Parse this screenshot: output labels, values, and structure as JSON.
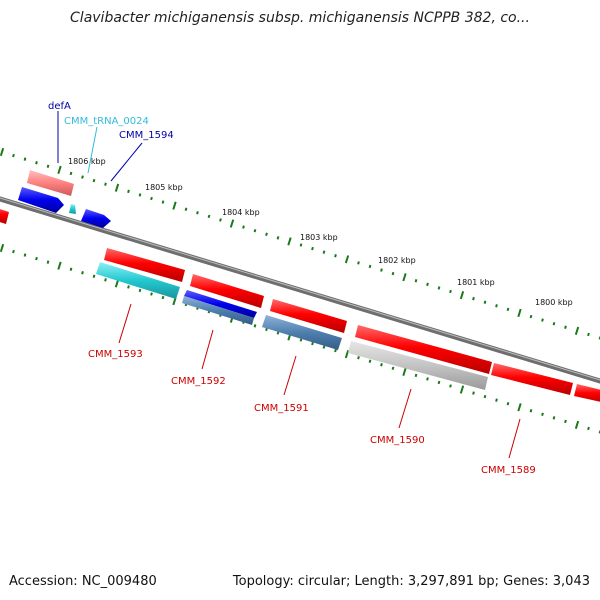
{
  "title": "Clavibacter michiganensis subsp. michiganensis NCPPB 382, co...",
  "footer": {
    "accession": "Accession: NC_009480",
    "summary": "Topology: circular; Length: 3,297,891 bp; Genes: 3,043"
  },
  "colors": {
    "backbone": "#7f7f7f",
    "tick": "#1a7a1a",
    "cds": "#ff0000",
    "blue": "#0000ee",
    "cyan": "#22c8d0",
    "steel": "#4f7faf",
    "gray": "#bdbdbd",
    "label_dark": "#0000aa",
    "label_light": "#33bbdd",
    "label_red": "#cc0000"
  },
  "scale": {
    "unit": "kbp",
    "ticks": [
      {
        "label": "1806 kbp",
        "value": 1806
      },
      {
        "label": "1805 kbp",
        "value": 1805
      },
      {
        "label": "1804 kbp",
        "value": 1804
      },
      {
        "label": "1803 kbp",
        "value": 1803
      },
      {
        "label": "1802 kbp",
        "value": 1802
      },
      {
        "label": "1801 kbp",
        "value": 1801
      },
      {
        "label": "1800 kbp",
        "value": 1800
      }
    ]
  },
  "genes": {
    "forward": [
      {
        "name": "defA",
        "color": "label_dark"
      },
      {
        "name": "CMM_tRNA_0024",
        "color": "label_light"
      },
      {
        "name": "CMM_1594",
        "color": "label_dark"
      }
    ],
    "reverse": [
      {
        "name": "CMM_1593",
        "color": "label_red"
      },
      {
        "name": "CMM_1592",
        "color": "label_red"
      },
      {
        "name": "CMM_1591",
        "color": "label_red"
      },
      {
        "name": "CMM_1590",
        "color": "label_red"
      },
      {
        "name": "CMM_1589",
        "color": "label_red"
      }
    ]
  }
}
